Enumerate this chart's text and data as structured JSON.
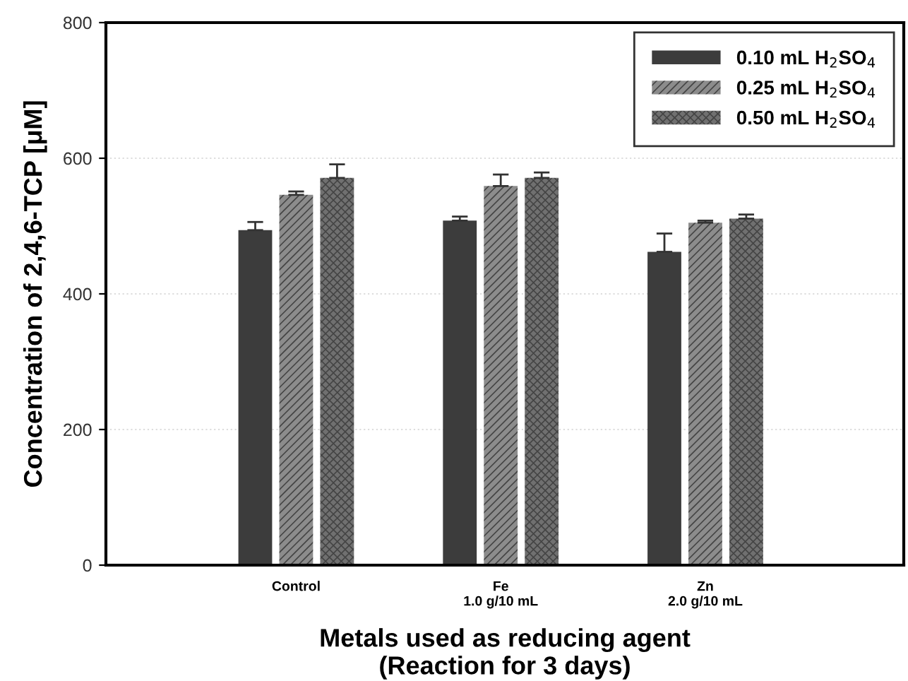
{
  "chart_data": {
    "type": "bar",
    "xlabel": "Metals used as reducing agent\n(Reaction for 3 days)",
    "ylabel": "Concentration of 2,4,6-TCP [μM]",
    "categories": [
      "Control",
      "Fe\n1.0 g/10 mL",
      "Zn\n2.0 g/10 mL"
    ],
    "series": [
      {
        "name": "0.10 mL H$_{2}$SO$_{4}$",
        "color": "#3c3c3c",
        "values": [
          494,
          508,
          462
        ],
        "errors": [
          12,
          6,
          27
        ]
      },
      {
        "name": "0.25 mL H$_{2}$SO$_{4}$",
        "color": "#8c8c8c",
        "values": [
          546,
          559,
          505
        ],
        "errors": [
          5,
          17,
          3
        ]
      },
      {
        "name": "0.50 mL H$_{2}$SO$_{4}$",
        "color": "#707070",
        "values": [
          571,
          571,
          511
        ],
        "errors": [
          20,
          8,
          6
        ]
      }
    ],
    "ylim": [
      0,
      800
    ],
    "yticks": [
      0,
      200,
      400,
      600,
      800
    ],
    "grid": "y",
    "legend": "top right"
  }
}
